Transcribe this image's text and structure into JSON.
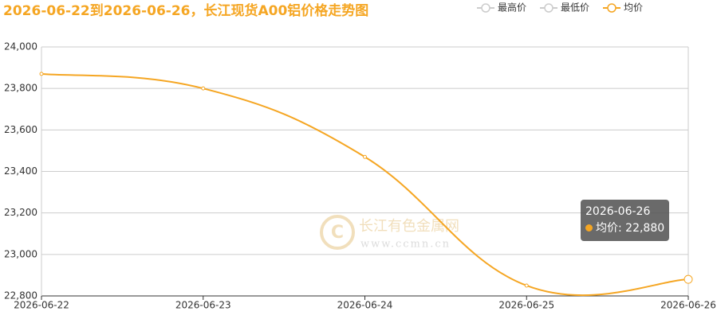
{
  "chart_data": {
    "type": "line",
    "title": "2026-06-22到2026-06-26，长江现货A00铝价格走势图",
    "legend": [
      {
        "name": "最高价",
        "color": "#cccccc"
      },
      {
        "name": "最低价",
        "color": "#cccccc"
      },
      {
        "name": "均价",
        "color": "#f5a623"
      }
    ],
    "x": [
      "2026-06-22",
      "2026-06-23",
      "2026-06-24",
      "2026-06-25",
      "2026-06-26"
    ],
    "series": [
      {
        "name": "均价",
        "color": "#f5a623",
        "values": [
          23870,
          23800,
          23470,
          22850,
          22880
        ],
        "value_labels": [
          null,
          null,
          null,
          null,
          "22,880"
        ]
      }
    ],
    "ylim": [
      22800,
      24000
    ],
    "yticks": [
      {
        "value": 22800,
        "label": "22,800"
      },
      {
        "value": 23000,
        "label": "23,000"
      },
      {
        "value": 23200,
        "label": "23,200"
      },
      {
        "value": 23400,
        "label": "23,400"
      },
      {
        "value": 23600,
        "label": "23,600"
      },
      {
        "value": 23800,
        "label": "23,800"
      },
      {
        "value": 24000,
        "label": "24,000"
      }
    ],
    "grid": true,
    "watermark": {
      "name": "长江有色金属网",
      "url": "www.ccmn.cn"
    }
  }
}
